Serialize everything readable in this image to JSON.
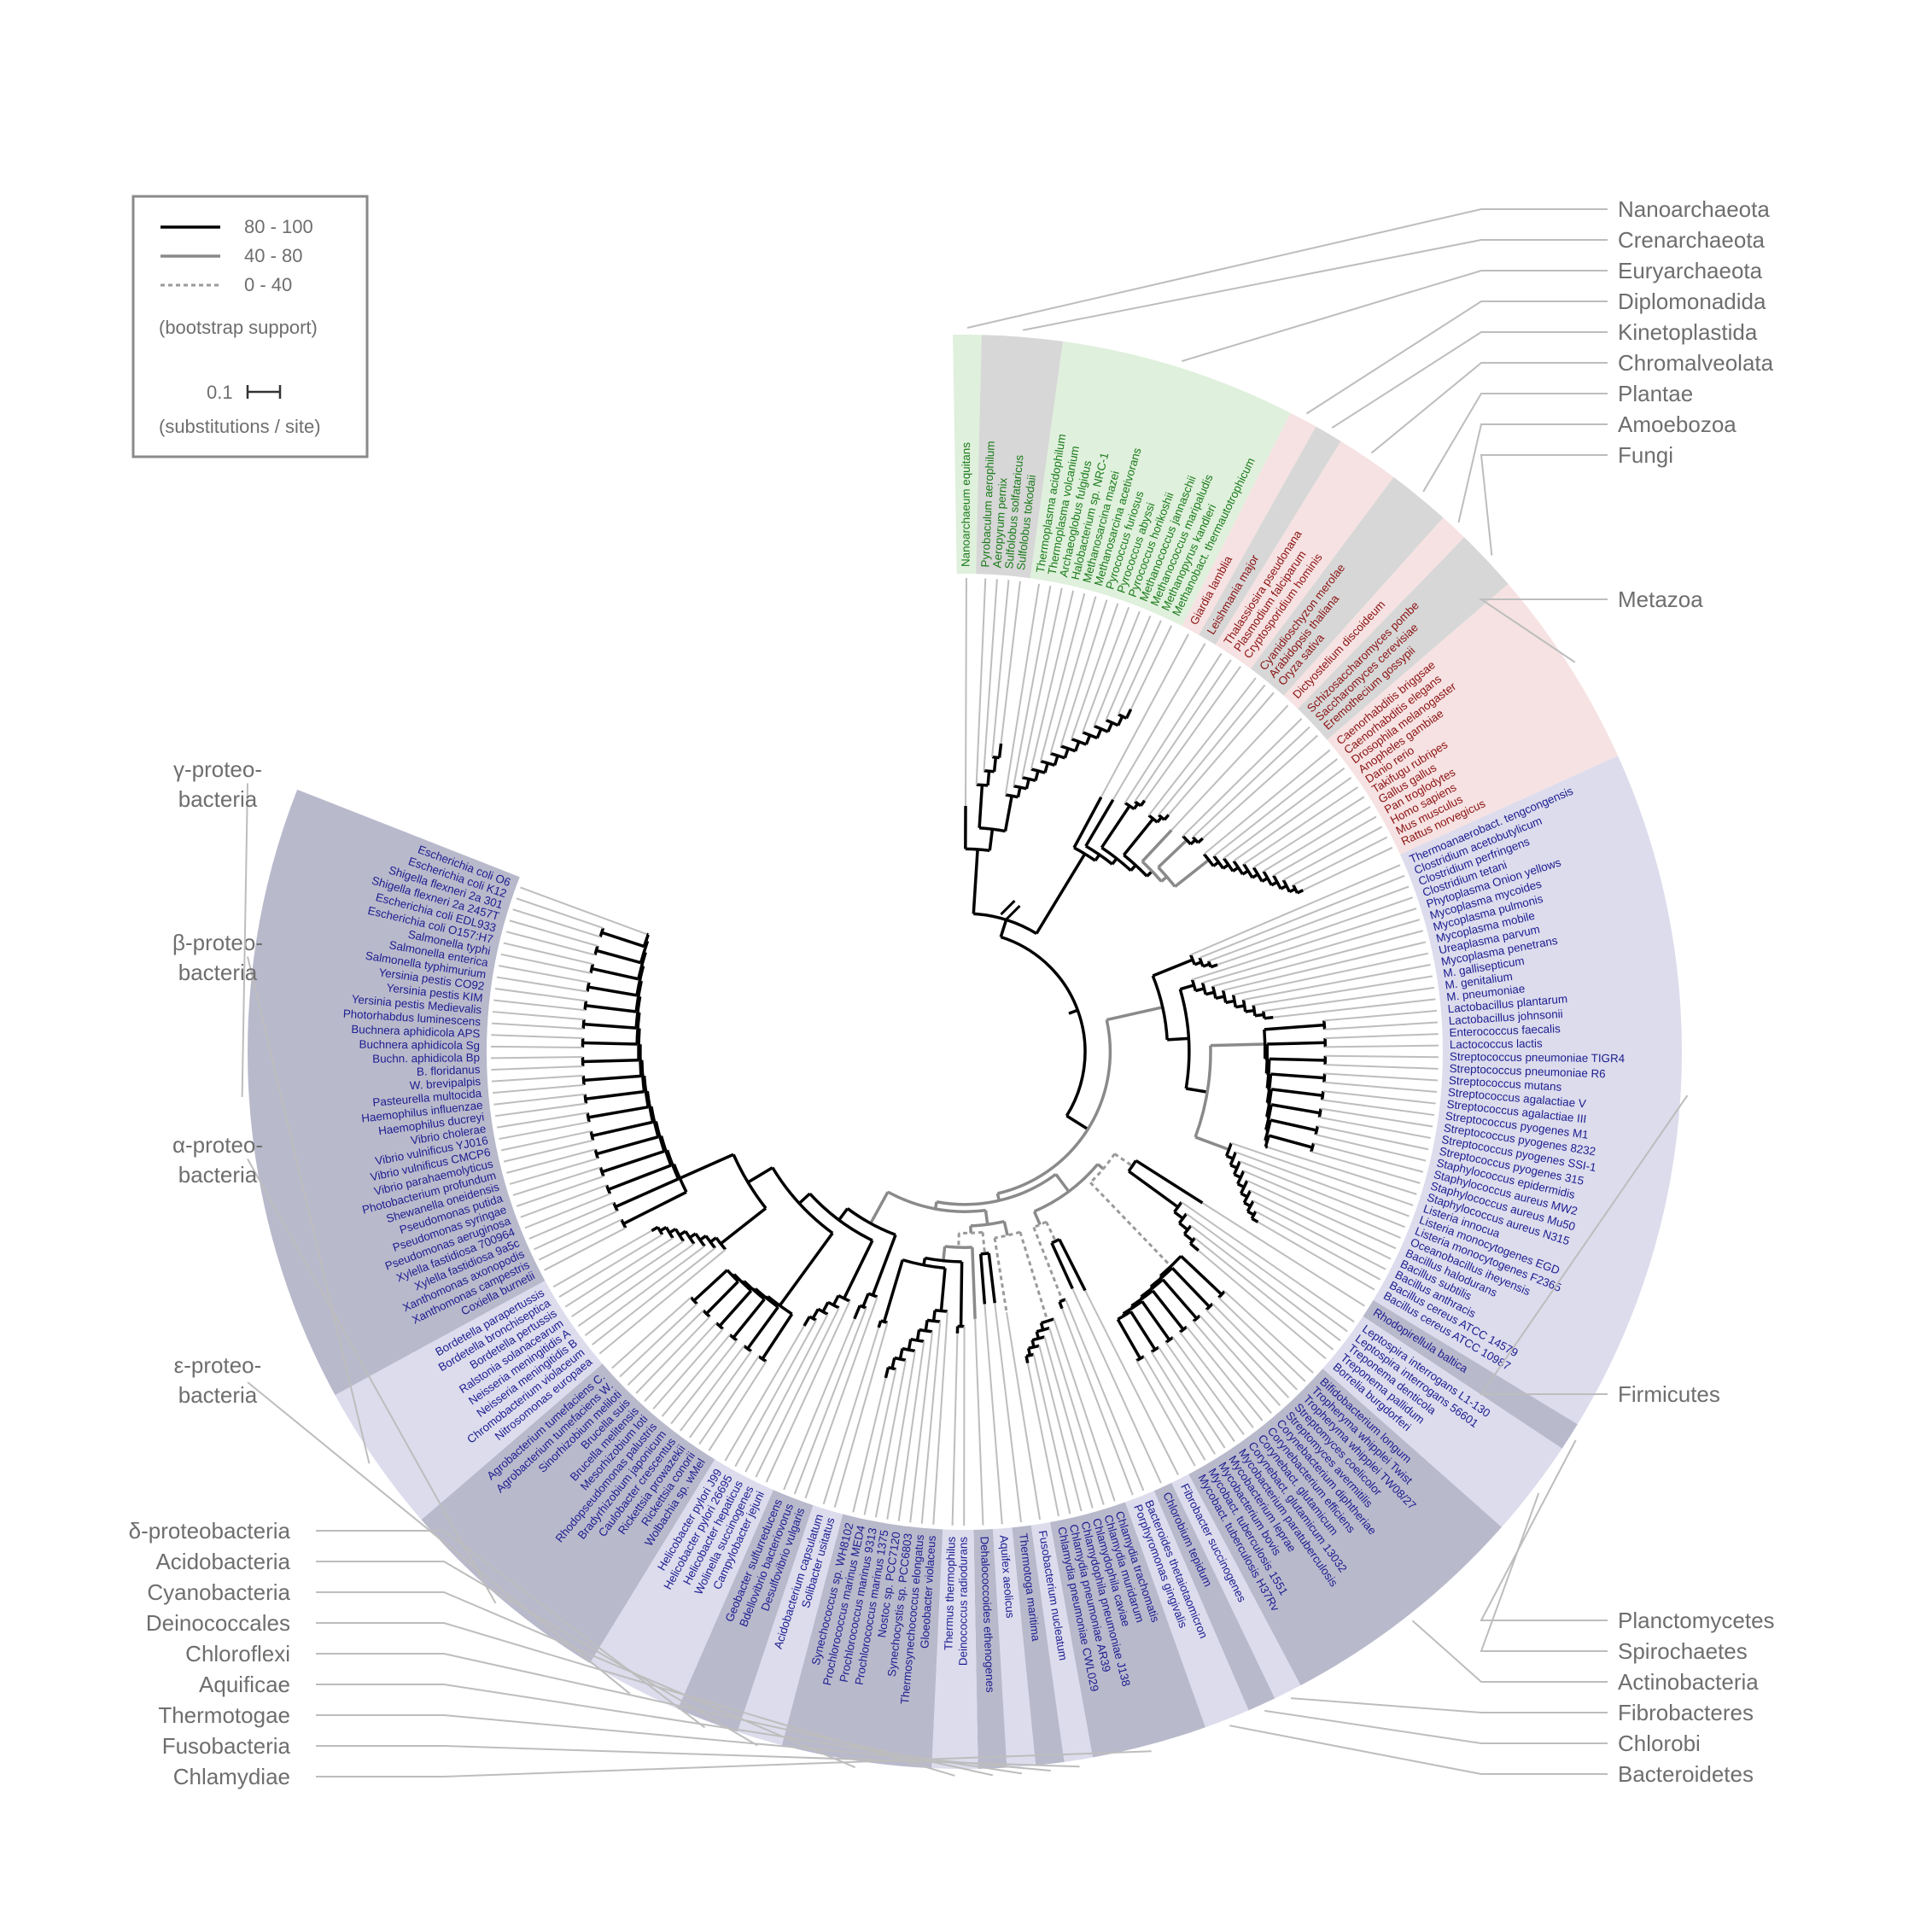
{
  "colors": {
    "archaea_band": "#dff0dc",
    "archaea_text": "#1a7a1a",
    "euk_band": "#f6e2e2",
    "euk_text": "#8b1212",
    "bact_dark": "#b9b9cc",
    "bact_light": "#dcdced",
    "bact_text": "#1c1c8f",
    "highlight": "#b7b7b7",
    "support_high": "#000000",
    "support_mid": "#8a8a8a",
    "support_low": "#9a9a9a",
    "leader": "#bdbdbd",
    "label": "#6e6e6e"
  },
  "legend": {
    "entries": [
      {
        "label": "80 - 100",
        "style": "high"
      },
      {
        "label": "40 - 80",
        "style": "mid"
      },
      {
        "label": "0 - 40",
        "style": "low"
      }
    ],
    "bootstrap_caption": "(bootstrap support)",
    "scale_value": "0.1",
    "scale_caption": "(substitutions / site)"
  },
  "groups": [
    {
      "name": "Nanoarchaeota",
      "domain": "archaea",
      "shade": "light",
      "side": "right",
      "leaves": [
        "Nanoarchaeum equitans"
      ]
    },
    {
      "name": "Crenarchaeota",
      "domain": "archaea",
      "shade": "highlight",
      "side": "right",
      "leaves": [
        "Pyrobaculum aerophilum",
        "Aeropyrum pernix",
        "Sulfolobus solfataricus",
        "Sulfolobus tokodaii"
      ]
    },
    {
      "name": "Euryarchaeota",
      "domain": "archaea",
      "shade": "light",
      "side": "right",
      "leaves": [
        "Thermoplasma acidophilum",
        "Thermoplasma volcanium",
        "Archaeoglobus fulgidus",
        "Halobacterium sp. NRC-1",
        "Methanosarcina mazei",
        "Methanosarcina acetivorans",
        "Pyrococcus furiosus",
        "Pyrococcus abyssi",
        "Pyrococcus horikoshii",
        "Methanococcus jannaschii",
        "Methanococcus maripaludis",
        "Methanopyrus kandleri",
        "Methanobact. thermautotrophicum"
      ]
    },
    {
      "name": "Diplomonadida",
      "domain": "euk",
      "shade": "light",
      "side": "right",
      "leaves": [
        "Giardia lamblia"
      ]
    },
    {
      "name": "Kinetoplastida",
      "domain": "euk",
      "shade": "highlight",
      "side": "right",
      "leaves": [
        "Leishmania major"
      ]
    },
    {
      "name": "Chromalveolata",
      "domain": "euk",
      "shade": "light",
      "side": "right",
      "leaves": [
        "Thalassiosira pseudonana",
        "Plasmodium falciparum",
        "Cryptosporidium hominis"
      ]
    },
    {
      "name": "Plantae",
      "domain": "euk",
      "shade": "highlight",
      "side": "right",
      "leaves": [
        "Cyanidioschyzon merolae",
        "Arabidopsis thaliana",
        "Oryza sativa"
      ]
    },
    {
      "name": "Amoebozoa",
      "domain": "euk",
      "shade": "light",
      "side": "right",
      "leaves": [
        "Dictyostelium discoideum"
      ]
    },
    {
      "name": "Fungi",
      "domain": "euk",
      "shade": "highlight",
      "side": "right",
      "leaves": [
        "Schizosaccharomyces pombe",
        "Saccharomyces cerevisiae",
        "Eremothecium gossypii"
      ]
    },
    {
      "name": "Metazoa",
      "domain": "euk",
      "shade": "light",
      "side": "right",
      "leaves": [
        "Caenorhabditis briggsae",
        "Caenorhabditis elegans",
        "Drosophila melanogaster",
        "Anopheles gambiae",
        "Danio rerio",
        "Takifugu rubripes",
        "Gallus gallus",
        "Pan troglodytes",
        "Homo sapiens",
        "Mus musculus",
        "Rattus norvegicus"
      ]
    },
    {
      "name": "Firmicutes",
      "domain": "bact",
      "shade": "light",
      "side": "right",
      "leaves": [
        "Thermoanaerobact. tengcongensis",
        "Clostridium acetobutylicum",
        "Clostridium perfringens",
        "Clostridium tetani",
        "Phytoplasma Onion yellows",
        "Mycoplasma mycoides",
        "Mycoplasma pulmonis",
        "Mycoplasma mobile",
        "Ureaplasma parvum",
        "Mycoplasma penetrans",
        "M. gallisepticum",
        "M. genitalium",
        "M. pneumoniae",
        "Lactobacillus plantarum",
        "Lactobacillus johnsonii",
        "Enterococcus faecalis",
        "Lactococcus lactis",
        "Streptococcus pneumoniae TIGR4",
        "Streptococcus pneumoniae R6",
        "Streptococcus mutans",
        "Streptococcus agalactiae V",
        "Streptococcus agalactiae III",
        "Streptococcus pyogenes M1",
        "Streptococcus pyogenes 8232",
        "Streptococcus pyogenes SSI-1",
        "Streptococcus pyogenes 315",
        "Staphylococcus epidermidis",
        "Staphylococcus aureus MW2",
        "Staphylococcus aureus Mu50",
        "Staphylococcus aureus N315",
        "Listeria innocua",
        "Listeria monocytogenes EGD",
        "Listeria monocytogenes F2365",
        "Oceanobacillus iheyensis",
        "Bacillus halodurans",
        "Bacillus subtilis",
        "Bacillus anthracis",
        "Bacillus cereus ATCC 14579",
        "Bacillus cereus ATCC 10987"
      ]
    },
    {
      "name": "Planctomycetes",
      "domain": "bact",
      "shade": "dark",
      "side": "right",
      "leaves": [
        "Rhodopirellula baltica"
      ]
    },
    {
      "name": "Spirochaetes",
      "domain": "bact",
      "shade": "light",
      "side": "right",
      "leaves": [
        "Leptospira interrogans L1-130",
        "Leptospira interrogans 56601",
        "Treponema denticola",
        "Treponema pallidum",
        "Borrelia burgdorferi"
      ]
    },
    {
      "name": "Actinobacteria",
      "domain": "bact",
      "shade": "dark",
      "side": "right",
      "leaves": [
        "Bifidobacterium longum",
        "Tropheryma whipplei Twist",
        "Tropheryma whipplei TW08/27",
        "Streptomyces coelicolor",
        "Streptomyces avermitilis",
        "Corynebacterium diphtheriae",
        "Corynebacterium efficiens",
        "Corynebact. glutamicum",
        "Corynebact. glutamicum 13032",
        "Mycobacterium paratuberculosis",
        "Mycobacterium leprae",
        "Mycobacterium bovis",
        "Mycobact. tuberculosis 1551",
        "Mycobact. tuberculosis H37Rv"
      ]
    },
    {
      "name": "Fibrobacteres",
      "domain": "bact",
      "shade": "light",
      "side": "right",
      "leaves": [
        "Fibrobacter succinogenes"
      ]
    },
    {
      "name": "Chlorobi",
      "domain": "bact",
      "shade": "dark",
      "side": "right",
      "leaves": [
        "Chlorobium tepidum"
      ]
    },
    {
      "name": "Bacteroidetes",
      "domain": "bact",
      "shade": "light",
      "side": "right",
      "leaves": [
        "Bacteroides thetaiotaomicron",
        "Porphyromonas gingivalis"
      ]
    },
    {
      "name": "Chlamydiae",
      "domain": "bact",
      "shade": "dark",
      "side": "left",
      "leaves": [
        "Chlamydia trachomatis",
        "Chlamydia muridarum",
        "Chlamydophila caviae",
        "Chlamydophila pneumoniae J138",
        "Chlamydia pneumoniae AR39",
        "Chlamydia pneumoniae CWL029"
      ]
    },
    {
      "name": "Fusobacteria",
      "domain": "bact",
      "shade": "light",
      "side": "left",
      "leaves": [
        "Fusobacterium nucleatum"
      ]
    },
    {
      "name": "Thermotogae",
      "domain": "bact",
      "shade": "dark",
      "side": "left",
      "leaves": [
        "Thermotoga maritima"
      ]
    },
    {
      "name": "Aquificae",
      "domain": "bact",
      "shade": "light",
      "side": "left",
      "leaves": [
        "Aquifex aeolicus"
      ]
    },
    {
      "name": "Chloroflexi",
      "domain": "bact",
      "shade": "dark",
      "side": "left",
      "leaves": [
        "Dehalococcoides ethenogenes"
      ]
    },
    {
      "name": "Deinococcales",
      "domain": "bact",
      "shade": "light",
      "side": "left",
      "leaves": [
        "Deinococcus radiodurans",
        "Thermus thermophilus"
      ]
    },
    {
      "name": "Cyanobacteria",
      "domain": "bact",
      "shade": "dark",
      "side": "left",
      "leaves": [
        "Gloeobacter violaceus",
        "Thermosynechococcus elongatus",
        "Synechocystis sp. PCC6803",
        "Nostoc sp. PCC7120",
        "Prochlorococcus marinus 1375",
        "Prochlorococcus marinus 9313",
        "Prochlorococcus marinus MED4",
        "Synechococcus sp. WH8102"
      ]
    },
    {
      "name": "Acidobacteria",
      "domain": "bact",
      "shade": "light",
      "side": "left",
      "leaves": [
        "Solibacter usitatus",
        "Acidobacterium capsulatum"
      ]
    },
    {
      "name": "δ-proteobacteria",
      "domain": "bact",
      "shade": "dark",
      "side": "left",
      "leaves": [
        "Desulfovibrio vulgaris",
        "Bdellovibrio bacteriovorus",
        "Geobacter sulfurreducens"
      ]
    },
    {
      "name": "ε-proteo-|bacteria",
      "domain": "bact",
      "shade": "light",
      "side": "left",
      "leaves": [
        "Campylobacter jejuni",
        "Wolinella succinogenes",
        "Helicobacter hepaticus",
        "Helicobacter pylori 26695",
        "Helicobacter pylori J99"
      ]
    },
    {
      "name": "α-proteo-|bacteria",
      "domain": "bact",
      "shade": "dark",
      "side": "left",
      "leaves": [
        "Wolbachia sp. wMel",
        "Rickettsia conorii",
        "Rickettsia prowazekii",
        "Caulobacter crescentus",
        "Bradyrhizobium japonicum",
        "Rhodopseudomonas palustris",
        "Mesorhizobium loti",
        "Brucella melitensis",
        "Brucella suis",
        "Sinorhizobium meliloti",
        "Agrobacterium tumefaciens W.",
        "Agrobacterium tumefaciens C."
      ]
    },
    {
      "name": "β-proteo-|bacteria",
      "domain": "bact",
      "shade": "light",
      "side": "left",
      "leaves": [
        "Nitrosomonas europaea",
        "Chromobacterium violaceum",
        "Neisseria meningitidis B",
        "Neisseria meningitidis A",
        "Ralstonia solanacearum",
        "Bordetella pertussis",
        "Bordetella bronchiseptica",
        "Bordetella parapertussis"
      ]
    },
    {
      "name": "γ-proteo-|bacteria",
      "domain": "bact",
      "shade": "dark",
      "side": "left",
      "leaves": [
        "Coxiella burnetii",
        "Xanthomonas campestris",
        "Xanthomonas axonopodis",
        "Xylella fastidiosa 9a5c",
        "Xylella fastidiosa 700964",
        "Pseudomonas aeruginosa",
        "Pseudomonas syringae",
        "Pseudomonas putida",
        "Shewanella oneidensis",
        "Photobacterium profundum",
        "Vibrio parahaemolyticus",
        "Vibrio vulnificus CMCP6",
        "Vibrio vulnificus YJ016",
        "Vibrio cholerae",
        "Haemophilus ducreyi",
        "Haemophilus influenzae",
        "Pasteurella multocida",
        "W. brevipalpis",
        "B. floridanus",
        "Buchn. aphidicola Bp",
        "Buchnera aphidicola Sg",
        "Buchnera aphidicola APS",
        "Photorhabdus luminescens",
        "Yersinia pestis Medievalis",
        "Yersinia pestis KIM",
        "Yersinia pestis CO92",
        "Salmonella typhimurium",
        "Salmonella enterica",
        "Salmonella typhi",
        "Escherichia coli O157:H7",
        "Escherichia coli EDL933",
        "Shigella flexneri 2a 2457T",
        "Shigella flexneri 2a 301",
        "Escherichia coli K12",
        "Escherichia coli O6"
      ]
    }
  ]
}
